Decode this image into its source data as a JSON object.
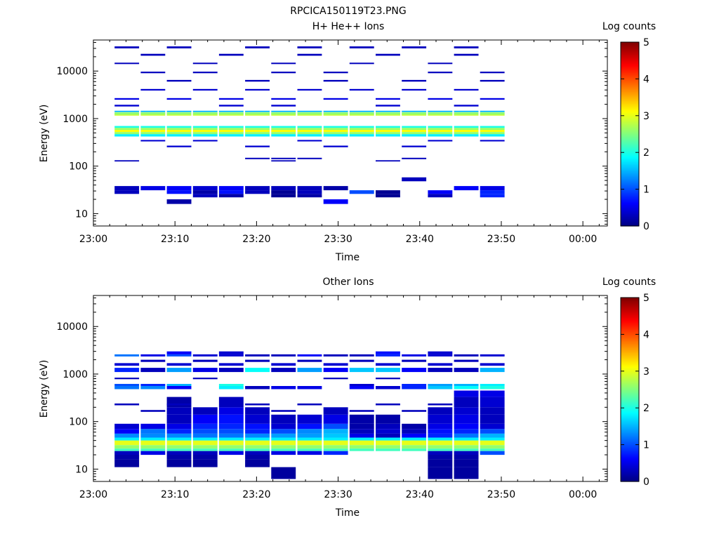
{
  "figure_title": "RPCICA150119T23.PNG",
  "chart_data": [
    {
      "type": "heatmap",
      "title": "H+ He++ Ions",
      "xlabel": "Time",
      "ylabel": "Energy (eV)",
      "x_tick_labels": [
        "23:00",
        "23:10",
        "23:20",
        "23:30",
        "23:40",
        "23:50",
        "00:00"
      ],
      "x_ticks_min": [
        0,
        10,
        20,
        30,
        40,
        50,
        60
      ],
      "xlim_min": [
        0,
        63
      ],
      "y_scale": "log",
      "y_tick_labels": [
        "10",
        "100",
        "1000",
        "10000"
      ],
      "y_ticks": [
        10,
        100,
        1000,
        10000
      ],
      "ylim": [
        5.5,
        45000
      ],
      "colorbar": {
        "label": "Log counts",
        "ticks": [
          "0",
          "1",
          "2",
          "3",
          "4",
          "5"
        ],
        "range": [
          0,
          5
        ]
      },
      "time_bins_min": [
        [
          2.6,
          5.6
        ],
        [
          5.8,
          8.8
        ],
        [
          9.0,
          12.0
        ],
        [
          12.2,
          15.2
        ],
        [
          15.4,
          18.4
        ],
        [
          18.6,
          21.6
        ],
        [
          21.8,
          24.8
        ],
        [
          25.0,
          28.0
        ],
        [
          28.2,
          31.2
        ],
        [
          31.4,
          34.4
        ],
        [
          34.6,
          37.6
        ],
        [
          37.8,
          40.8
        ],
        [
          41.0,
          44.0
        ],
        [
          44.2,
          47.2
        ],
        [
          47.4,
          50.4
        ]
      ],
      "cells": [
        {
          "c": "all",
          "e": [
            1150,
            1350
          ],
          "v": 3.0
        },
        {
          "c": "all",
          "e": [
            1260,
            1330
          ],
          "v": 2.4
        },
        {
          "c": "all",
          "e": [
            1180,
            1230
          ],
          "v": 2.6
        },
        {
          "c": "all",
          "e": [
            1370,
            1460
          ],
          "v": 1.5
        },
        {
          "c": "all",
          "e": [
            640,
            700
          ],
          "v": 2.0
        },
        {
          "c": "all",
          "e": [
            580,
            640
          ],
          "v": 2.6
        },
        {
          "c": "all",
          "e": [
            520,
            580
          ],
          "v": 3.1
        },
        {
          "c": "all",
          "e": [
            470,
            520
          ],
          "v": 2.6
        },
        {
          "c": "all",
          "e": [
            420,
            470
          ],
          "v": 1.8
        },
        {
          "c": [
            0,
            1,
            2,
            3,
            4,
            5,
            6,
            7,
            8,
            9,
            10,
            11,
            12,
            13,
            14
          ],
          "e": [
            31,
            38
          ],
          "v": [
            0.3,
            0.5,
            0.6,
            0.4,
            0.6,
            0.3,
            0.3,
            0.3,
            0.2,
            null,
            null,
            null,
            null,
            0.6,
            0.5
          ]
        },
        {
          "c": [
            0,
            2,
            3,
            4,
            5,
            6,
            7,
            9,
            10,
            12,
            13,
            14
          ],
          "e": [
            26,
            31
          ],
          "v": [
            0.3,
            0.7,
            0.2,
            0.7,
            0.3,
            0.1,
            0.3,
            1.0,
            0.1,
            0.6,
            null,
            0.8
          ]
        },
        {
          "c": [
            3,
            4,
            6,
            7,
            10,
            12,
            14
          ],
          "e": [
            22,
            26
          ],
          "v": [
            0.3,
            0.2,
            0.1,
            0.2,
            0.1,
            0.3,
            0.8
          ]
        },
        {
          "c": [
            2,
            8
          ],
          "e": [
            16,
            20
          ],
          "v": [
            0.2,
            0.6
          ]
        },
        {
          "c": [
            0,
            2,
            4,
            6,
            8,
            10,
            12,
            14
          ],
          "e": [
            2500,
            2700
          ],
          "v": 0.5
        },
        {
          "c": [
            1,
            3,
            5,
            7,
            9,
            11,
            13
          ],
          "e": [
            3900,
            4200
          ],
          "v": 0.4
        },
        {
          "c": [
            0,
            3,
            6,
            9,
            12
          ],
          "e": [
            14000,
            15000
          ],
          "v": 0.3
        },
        {
          "c": [
            2,
            5,
            8,
            11,
            14
          ],
          "e": [
            6000,
            6500
          ],
          "v": 0.3
        },
        {
          "c": [
            1,
            4,
            7,
            10,
            13
          ],
          "e": [
            21000,
            23000
          ],
          "v": 0.3
        },
        {
          "c": [
            0,
            2,
            5,
            7,
            9,
            11,
            13
          ],
          "e": [
            30000,
            33000
          ],
          "v": 0.3
        },
        {
          "c": [
            1,
            3,
            6,
            8,
            12,
            14
          ],
          "e": [
            9000,
            9700
          ],
          "v": 0.3
        },
        {
          "c": [
            0,
            4,
            6,
            10,
            13
          ],
          "e": [
            1800,
            1950
          ],
          "v": 0.4
        },
        {
          "c": [
            2,
            5,
            8,
            11
          ],
          "e": [
            250,
            270
          ],
          "v": 0.4
        },
        {
          "c": [
            1,
            3,
            7,
            12,
            14
          ],
          "e": [
            330,
            355
          ],
          "v": 0.4
        },
        {
          "c": [
            5,
            6,
            7,
            11
          ],
          "e": [
            140,
            150
          ],
          "v": 0.3
        },
        {
          "c": [
            0,
            6,
            10
          ],
          "e": [
            125,
            133
          ],
          "v": 0.3
        },
        {
          "c": [
            11
          ],
          "e": [
            48,
            58
          ],
          "v": 0.3
        }
      ]
    },
    {
      "type": "heatmap",
      "title": "Other Ions",
      "xlabel": "Time",
      "ylabel": "Energy (eV)",
      "x_tick_labels": [
        "23:00",
        "23:10",
        "23:20",
        "23:30",
        "23:40",
        "23:50",
        "00:00"
      ],
      "x_ticks_min": [
        0,
        10,
        20,
        30,
        40,
        50,
        60
      ],
      "xlim_min": [
        0,
        63
      ],
      "y_scale": "log",
      "y_tick_labels": [
        "10",
        "100",
        "1000",
        "10000"
      ],
      "y_ticks": [
        10,
        100,
        1000,
        10000
      ],
      "ylim": [
        5.5,
        45000
      ],
      "colorbar": {
        "label": "Log counts",
        "ticks": [
          "0",
          "1",
          "2",
          "3",
          "4",
          "5"
        ],
        "range": [
          0,
          5
        ]
      },
      "time_bins_min": [
        [
          2.6,
          5.6
        ],
        [
          5.8,
          8.8
        ],
        [
          9.0,
          12.0
        ],
        [
          12.2,
          15.2
        ],
        [
          15.4,
          18.4
        ],
        [
          18.6,
          21.6
        ],
        [
          21.8,
          24.8
        ],
        [
          25.0,
          28.0
        ],
        [
          28.2,
          31.2
        ],
        [
          31.4,
          34.4
        ],
        [
          34.6,
          37.6
        ],
        [
          37.8,
          40.8
        ],
        [
          41.0,
          44.0
        ],
        [
          44.2,
          47.2
        ],
        [
          47.4,
          50.4
        ]
      ],
      "cells": [
        {
          "c": "all",
          "e": [
            32,
            40
          ],
          "v": 3.0
        },
        {
          "c": "all",
          "e": [
            27,
            32
          ],
          "v": 2.6
        },
        {
          "c": "all",
          "e": [
            24,
            27
          ],
          "v": 2.2
        },
        {
          "c": "all",
          "e": [
            40,
            46
          ],
          "v": 1.8
        },
        {
          "c": "all",
          "e": [
            20,
            24
          ],
          "v": [
            0.3,
            0.5,
            0.3,
            0.3,
            0.5,
            0.3,
            0.5,
            0.5,
            0.8,
            null,
            null,
            null,
            0.3,
            0.3,
            1.0
          ]
        },
        {
          "c": [
            0,
            2,
            3,
            5,
            12,
            13
          ],
          "e": [
            16,
            20
          ],
          "v": 0.2
        },
        {
          "c": [
            0,
            2,
            3,
            5,
            12,
            13
          ],
          "e": [
            11,
            16
          ],
          "v": 0.15
        },
        {
          "c": [
            6,
            12,
            13
          ],
          "e": [
            6.2,
            11
          ],
          "v": 0.15
        },
        {
          "c": "all",
          "e": [
            46,
            56
          ],
          "v": [
            1.3,
            1.3,
            1.3,
            1.2,
            1.2,
            1.3,
            1.4,
            1.4,
            1.6,
            0.5,
            0.3,
            0.6,
            0.8,
            1.2,
            1.5
          ]
        },
        {
          "c": "all",
          "e": [
            56,
            70
          ],
          "v": [
            0.6,
            1.2,
            0.8,
            1.0,
            1.0,
            0.8,
            1.0,
            1.3,
            1.5,
            0.3,
            0.4,
            0.3,
            0.7,
            0.8,
            1.0
          ]
        },
        {
          "c": [
            0,
            1,
            2,
            3,
            4,
            5,
            6,
            7,
            8,
            9,
            10,
            11,
            12,
            13,
            14
          ],
          "e": [
            70,
            90
          ],
          "v": [
            0.4,
            0.5,
            0.5,
            0.8,
            0.8,
            0.7,
            0.4,
            0.7,
            1.0,
            0.2,
            0.3,
            0.2,
            0.5,
            0.6,
            0.4
          ]
        },
        {
          "c": [
            2,
            3,
            4,
            5,
            6,
            7,
            8,
            9,
            10,
            12,
            13,
            14
          ],
          "e": [
            90,
            140
          ],
          "v": [
            0.3,
            0.6,
            0.7,
            0.4,
            0.3,
            0.4,
            0.5,
            0.2,
            0.2,
            0.4,
            0.5,
            0.3
          ]
        },
        {
          "c": [
            2,
            3,
            4,
            5,
            8,
            12,
            13,
            14
          ],
          "e": [
            140,
            200
          ],
          "v": [
            0.3,
            0.3,
            0.5,
            0.3,
            0.3,
            0.3,
            0.4,
            0.3
          ]
        },
        {
          "c": [
            2,
            4,
            13,
            14
          ],
          "e": [
            200,
            330
          ],
          "v": [
            0.2,
            0.3,
            0.3,
            0.4
          ]
        },
        {
          "c": [
            13,
            14
          ],
          "e": [
            330,
            450
          ],
          "v": 0.5
        },
        {
          "c": [
            0,
            1,
            2,
            4,
            5,
            6,
            7,
            9,
            10,
            11,
            12,
            13,
            14
          ],
          "e": [
            480,
            560
          ],
          "v": [
            1.2,
            1.3,
            0.6,
            1.8,
            0.3,
            0.5,
            0.5,
            0.6,
            0.4,
            0.8,
            1.6,
            1.9,
            2.0
          ]
        },
        {
          "c": [
            0,
            1,
            2,
            4,
            9,
            11,
            12,
            13,
            14
          ],
          "e": [
            560,
            620
          ],
          "v": [
            1.0,
            0.8,
            1.5,
            2.0,
            0.4,
            0.8,
            1.4,
            1.5,
            1.8
          ]
        },
        {
          "c": [
            0,
            1,
            2,
            3,
            4,
            5,
            6,
            7,
            8,
            9,
            10,
            11,
            12,
            13,
            14
          ],
          "e": [
            1100,
            1350
          ],
          "v": [
            0.8,
            0.3,
            1.4,
            0.5,
            0.3,
            1.9,
            0.3,
            1.4,
            0.6,
            1.6,
            1.6,
            0.6,
            0.3,
            0.3,
            1.5
          ]
        },
        {
          "c": [
            0,
            1,
            2,
            3,
            4,
            5,
            6,
            7,
            8,
            9,
            10,
            11,
            12,
            13,
            14
          ],
          "e": [
            2350,
            2600
          ],
          "v": [
            1.2,
            0.5,
            1.0,
            0.4,
            0.4,
            0.3,
            0.3,
            0.6,
            0.3,
            0.3,
            0.8,
            0.5,
            0.4,
            0.3,
            0.4
          ]
        },
        {
          "c": [
            2,
            4,
            10,
            12
          ],
          "e": [
            2600,
            3000
          ],
          "v": [
            0.6,
            0.4,
            0.7,
            0.4
          ]
        },
        {
          "c": [
            0,
            2,
            4,
            6,
            8,
            10,
            12,
            14
          ],
          "e": [
            1500,
            1700
          ],
          "v": 0.4
        },
        {
          "c": [
            1,
            3,
            5,
            7,
            9,
            11,
            13
          ],
          "e": [
            1800,
            2000
          ],
          "v": 0.3
        },
        {
          "c": [
            0,
            2,
            5,
            7,
            10,
            12
          ],
          "e": [
            220,
            240
          ],
          "v": 0.3
        },
        {
          "c": [
            1,
            6,
            9,
            11
          ],
          "e": [
            160,
            175
          ],
          "v": 0.3
        },
        {
          "c": [
            0,
            3,
            8,
            10
          ],
          "e": [
            780,
            840
          ],
          "v": 0.3
        }
      ]
    }
  ]
}
